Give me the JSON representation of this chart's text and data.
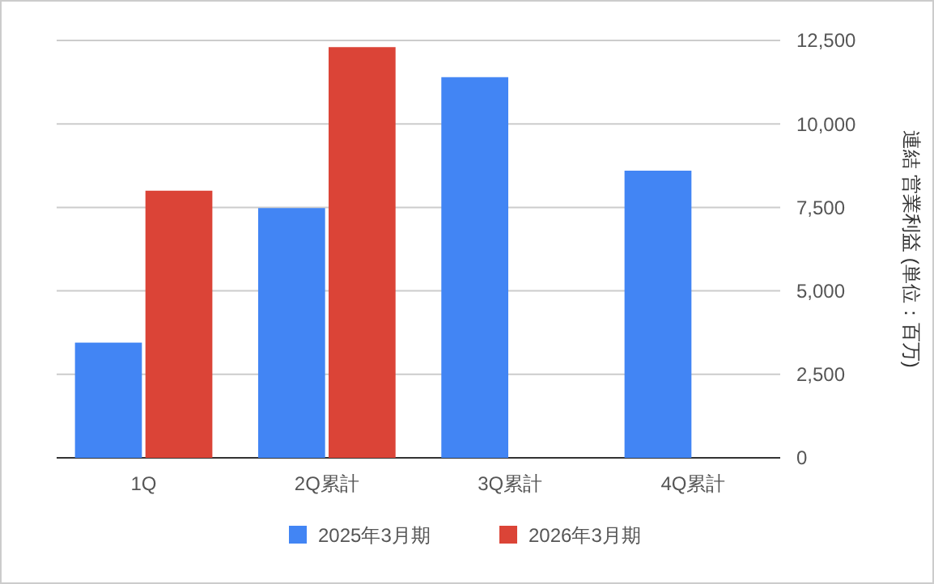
{
  "chart_data": {
    "type": "bar",
    "ylabel": "連結 営業利益 (単位：百万)",
    "categories": [
      "1Q",
      "2Q累計",
      "3Q累計",
      "4Q累計"
    ],
    "series": [
      {
        "name": "2025年3月期",
        "color": "#4285f4",
        "values": [
          3450,
          7480,
          11400,
          8600
        ]
      },
      {
        "name": "2026年3月期",
        "color": "#db4437",
        "values": [
          8000,
          12300,
          null,
          null
        ]
      }
    ],
    "ylim": [
      0,
      12500
    ],
    "yticks": [
      0,
      {
        "value": 2500,
        "label": "2,500"
      },
      {
        "value": 5000,
        "label": "5,000"
      },
      {
        "value": 7500,
        "label": "7,500"
      },
      {
        "value": 10000,
        "label": "10,000"
      },
      {
        "value": 12500,
        "label": "12,500"
      }
    ],
    "grid": true,
    "legend": "bottom"
  }
}
